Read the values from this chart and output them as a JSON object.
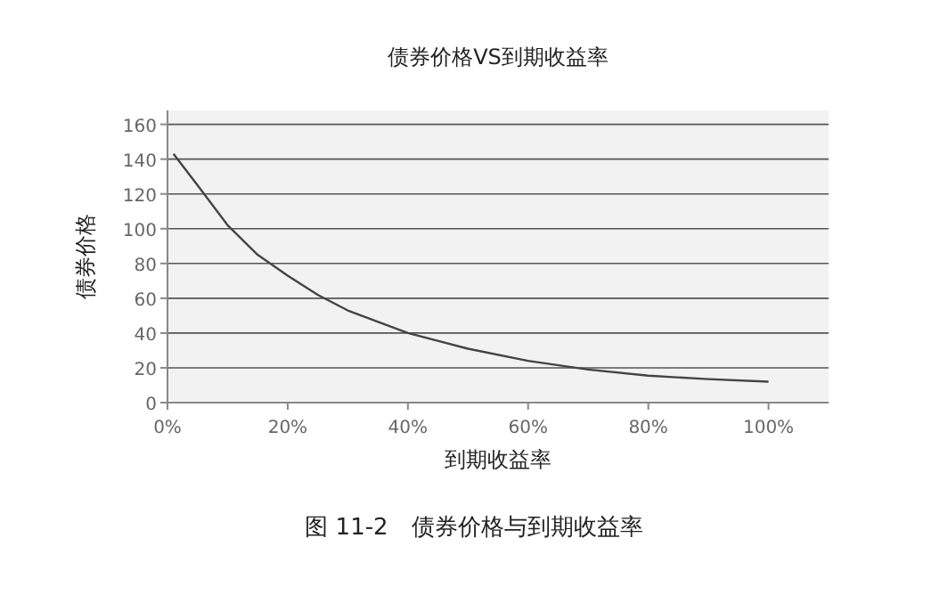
{
  "chart_data": {
    "type": "line",
    "title": "债券价格VS到期收益率",
    "xlabel": "到期收益率",
    "ylabel": "债券价格",
    "annotations": [
      "图 11-2　债券价格与到期收益率"
    ],
    "x": [
      1,
      5,
      10,
      15,
      20,
      25,
      30,
      40,
      50,
      60,
      70,
      80,
      90,
      100
    ],
    "series": [
      {
        "color": "#444444",
        "values": [
          143,
          125,
          102,
          85,
          73,
          62,
          53,
          40,
          31,
          24,
          19,
          15.5,
          13.5,
          12
        ]
      }
    ],
    "xlim": [
      0,
      110
    ],
    "xticks": [
      {
        "value": 0,
        "label": "0%"
      },
      {
        "value": 20,
        "label": "20%"
      },
      {
        "value": 40,
        "label": "40%"
      },
      {
        "value": 60,
        "label": "60%"
      },
      {
        "value": 80,
        "label": "80%"
      },
      {
        "value": 100,
        "label": "100%"
      }
    ],
    "ylim": [
      0,
      168
    ],
    "yticks": [
      0,
      20,
      40,
      60,
      80,
      100,
      120,
      140,
      160
    ],
    "grid": "y",
    "marker": "none",
    "line_style": "solid"
  }
}
